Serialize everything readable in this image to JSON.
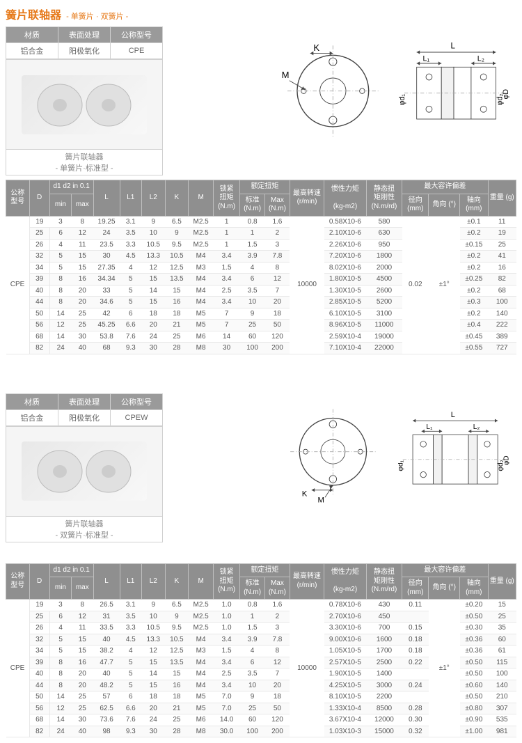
{
  "title": "簧片联轴器",
  "subtitle": "- 单簧片 · 双簧片 -",
  "block1": {
    "mat": {
      "h1": "材质",
      "h2": "表面处理",
      "h3": "公称型号",
      "v1": "铝合金",
      "v2": "阳极氧化",
      "v3": "CPE",
      "cap1": "簧片联轴器",
      "cap2": "- 单簧片·标准型 -"
    },
    "head": {
      "c1": "公称\n型号",
      "c2": "D",
      "c3": "d1 d2  in 0.1",
      "c3a": "min",
      "c3b": "max",
      "c4": "L",
      "c5": "L1",
      "c6": "L2",
      "c7": "K",
      "c8": "M",
      "c9": "锁紧\n扭矩\n(N.m)",
      "c10": "额定扭矩",
      "c10a": "标准\n(N.m)",
      "c10b": "Max\n(N.m)",
      "c11": "最高转速\n(r/min)",
      "c12": "惯性力矩\n\n(kg-m2)",
      "c13": "静态扭\n矩刚性\n(N.m/rd)",
      "c14": "最大容许偏差",
      "c14a": "径向\n(mm)",
      "c14b": "角向 (°)",
      "c14c": "轴向\n(mm)",
      "c15": "重量 (g)"
    },
    "model": "CPE",
    "rpm": "10000",
    "rad": "0.02",
    "ang": "±1°",
    "rows": [
      [
        "19",
        "3",
        "8",
        "19.25",
        "3.1",
        "9",
        "6.5",
        "M2.5",
        "1",
        "0.8",
        "1.6",
        "0.58X10-6",
        "580",
        "",
        "±0.1",
        "11"
      ],
      [
        "25",
        "6",
        "12",
        "24",
        "3.5",
        "10",
        "9",
        "M2.5",
        "1",
        "1",
        "2",
        "2.10X10-6",
        "630",
        "",
        "±0.2",
        "19"
      ],
      [
        "26",
        "4",
        "11",
        "23.5",
        "3.3",
        "10.5",
        "9.5",
        "M2.5",
        "1",
        "1.5",
        "3",
        "2.26X10-6",
        "950",
        "",
        "±0.15",
        "25"
      ],
      [
        "32",
        "5",
        "15",
        "30",
        "4.5",
        "13.3",
        "10.5",
        "M4",
        "3.4",
        "3.9",
        "7.8",
        "7.20X10-6",
        "1800",
        "",
        "±0.2",
        "41"
      ],
      [
        "34",
        "5",
        "15",
        "27.35",
        "4",
        "12",
        "12.5",
        "M3",
        "1.5",
        "4",
        "8",
        "8.02X10-6",
        "2000",
        "",
        "±0.2",
        "16"
      ],
      [
        "39",
        "8",
        "16",
        "34.34",
        "5",
        "15",
        "13.5",
        "M4",
        "3.4",
        "6",
        "12",
        "1.80X10-5",
        "4500",
        "",
        "±0.25",
        "82"
      ],
      [
        "40",
        "8",
        "20",
        "33",
        "5",
        "14",
        "15",
        "M4",
        "2.5",
        "3.5",
        "7",
        "1.30X10-5",
        "2600",
        "",
        "±0.2",
        "68"
      ],
      [
        "44",
        "8",
        "20",
        "34.6",
        "5",
        "15",
        "16",
        "M4",
        "3.4",
        "10",
        "20",
        "2.85X10-5",
        "5200",
        "",
        "±0.3",
        "100"
      ],
      [
        "50",
        "14",
        "25",
        "42",
        "6",
        "18",
        "18",
        "M5",
        "7",
        "9",
        "18",
        "6.10X10-5",
        "3100",
        "",
        "±0.2",
        "140"
      ],
      [
        "56",
        "12",
        "25",
        "45.25",
        "6.6",
        "20",
        "21",
        "M5",
        "7",
        "25",
        "50",
        "8.96X10-5",
        "11000",
        "",
        "±0.4",
        "222"
      ],
      [
        "68",
        "14",
        "30",
        "53.8",
        "7.6",
        "24",
        "25",
        "M6",
        "14",
        "60",
        "120",
        "2.59X10-4",
        "19000",
        "",
        "±0.45",
        "389"
      ],
      [
        "82",
        "24",
        "40",
        "68",
        "9.3",
        "30",
        "28",
        "M8",
        "30",
        "100",
        "200",
        "7.10X10-4",
        "22000",
        "",
        "±0.55",
        "727"
      ]
    ]
  },
  "block2": {
    "mat": {
      "h1": "材质",
      "h2": "表面处理",
      "h3": "公称型号",
      "v1": "铝合金",
      "v2": "阳极氧化",
      "v3": "CPEW",
      "cap1": "簧片联轴器",
      "cap2": "- 双簧片·标准型 -"
    },
    "head": {
      "c1": "公称\n型号",
      "c2": "D",
      "c3": "d1 d2  in 0.1",
      "c3a": "min",
      "c3b": "max",
      "c4": "L",
      "c5": "L1",
      "c6": "L2",
      "c7": "K",
      "c8": "M",
      "c9": "锁紧\n扭矩\n(N.m)",
      "c10": "额定扭矩",
      "c10a": "标准\n(N.m)",
      "c10b": "Max\n(N.m)",
      "c11": "最高转速\n(r/min)",
      "c12": "惯性力矩\n\n(kg-m2)",
      "c13": "静态扭\n矩刚性\n(N.m/rd)",
      "c14": "最大容许偏差",
      "c14a": "径向\n(mm)",
      "c14b": "角向 (°)",
      "c14c": "轴向\n(mm)",
      "c15": "重量 (g)"
    },
    "model": "CPE",
    "rpm": "10000",
    "ang": "±1°",
    "rows": [
      [
        "19",
        "3",
        "8",
        "26.5",
        "3.1",
        "9",
        "6.5",
        "M2.5",
        "1.0",
        "0.8",
        "1.6",
        "0.78X10-6",
        "430",
        "0.11",
        "±0.20",
        "15"
      ],
      [
        "25",
        "6",
        "12",
        "31",
        "3.5",
        "10",
        "9",
        "M2.5",
        "1.0",
        "1",
        "2",
        "2.70X10-6",
        "450",
        "",
        "±0.50",
        "25"
      ],
      [
        "26",
        "4",
        "11",
        "33.5",
        "3.3",
        "10.5",
        "9.5",
        "M2.5",
        "1.0",
        "1.5",
        "3",
        "3.30X10-6",
        "700",
        "0.15",
        "±0.30",
        "35"
      ],
      [
        "32",
        "5",
        "15",
        "40",
        "4.5",
        "13.3",
        "10.5",
        "M4",
        "3.4",
        "3.9",
        "7.8",
        "9.00X10-6",
        "1600",
        "0.18",
        "±0.36",
        "60"
      ],
      [
        "34",
        "5",
        "15",
        "38.2",
        "4",
        "12",
        "12.5",
        "M3",
        "1.5",
        "4",
        "8",
        "1.05X10-5",
        "1700",
        "0.18",
        "±0.36",
        "61"
      ],
      [
        "39",
        "8",
        "16",
        "47.7",
        "5",
        "15",
        "13.5",
        "M4",
        "3.4",
        "6",
        "12",
        "2.57X10-5",
        "2500",
        "0.22",
        "±0.50",
        "115"
      ],
      [
        "40",
        "8",
        "20",
        "40",
        "5",
        "14",
        "15",
        "M4",
        "2.5",
        "3.5",
        "7",
        "1.90X10-5",
        "1400",
        "",
        "±0.50",
        "100"
      ],
      [
        "44",
        "8",
        "20",
        "48.2",
        "5",
        "15",
        "16",
        "M4",
        "3.4",
        "10",
        "20",
        "4.25X10-5",
        "3000",
        "0.24",
        "±0.60",
        "140"
      ],
      [
        "50",
        "14",
        "25",
        "57",
        "6",
        "18",
        "18",
        "M5",
        "7.0",
        "9",
        "18",
        "8.10X10-5",
        "2200",
        "",
        "±0.50",
        "210"
      ],
      [
        "56",
        "12",
        "25",
        "62.5",
        "6.6",
        "20",
        "21",
        "M5",
        "7.0",
        "25",
        "50",
        "1.33X10-4",
        "8500",
        "0.28",
        "±0.80",
        "307"
      ],
      [
        "68",
        "14",
        "30",
        "73.6",
        "7.6",
        "24",
        "25",
        "M6",
        "14.0",
        "60",
        "120",
        "3.67X10-4",
        "12000",
        "0.30",
        "±0.90",
        "535"
      ],
      [
        "82",
        "24",
        "40",
        "98",
        "9.3",
        "30",
        "28",
        "M8",
        "30.0",
        "100",
        "200",
        "1.03X10-3",
        "15000",
        "0.32",
        "±1.00",
        "981"
      ]
    ]
  },
  "diag": {
    "K": "K",
    "M": "M",
    "L": "L",
    "L1": "L₁",
    "L2": "L₂",
    "D": "φD",
    "d1": "φd₁",
    "d2": "φd₂"
  }
}
